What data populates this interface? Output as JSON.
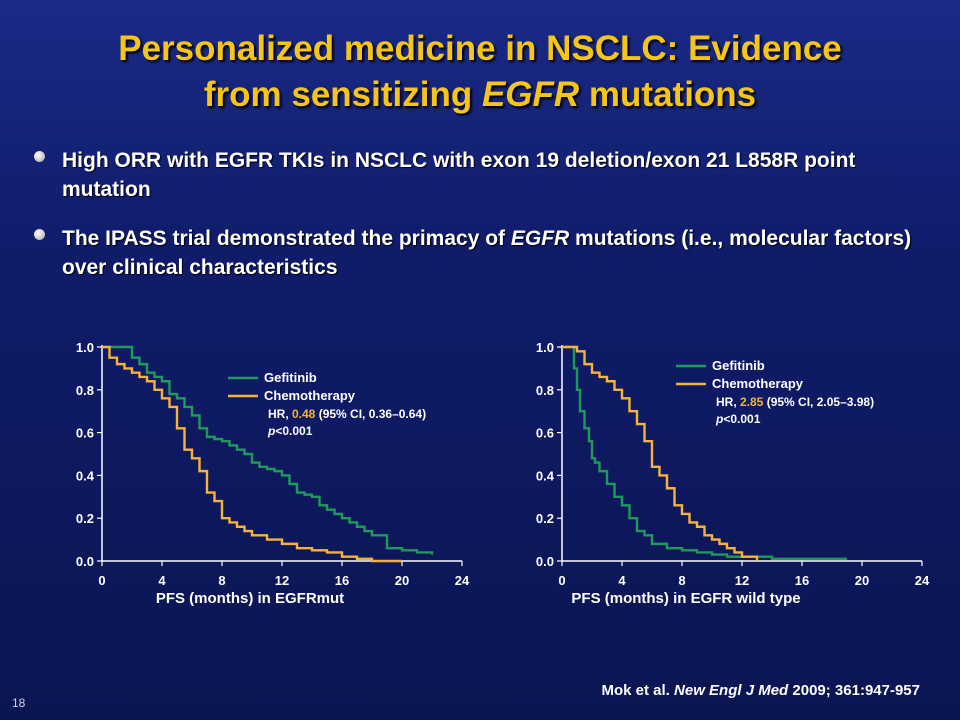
{
  "title": {
    "line1": "Personalized medicine in NSCLC: Evidence",
    "line2_pre": "from sensitizing ",
    "line2_em": "EGFR",
    "line2_post": " mutations"
  },
  "bullets": [
    {
      "text_pre": "High ORR with EGFR TKIs in NSCLC with exon 19 deletion/exon 21 L858R point mutation",
      "text_em": "",
      "text_post": ""
    },
    {
      "text_pre": "The IPASS trial demonstrated the primacy of ",
      "text_em": "EGFR",
      "text_post": " mutations (i.e., molecular factors) over clinical characteristics"
    }
  ],
  "colors": {
    "gefitinib": "#1f9a5c",
    "chemotherapy": "#f5b23d",
    "title": "#f5c518"
  },
  "chart_data": [
    {
      "type": "line",
      "xlabel": "PFS (months) in EGFRmut",
      "ylabel": "",
      "xlim": [
        0,
        24
      ],
      "ylim": [
        0,
        1
      ],
      "x_ticks": [
        "0",
        "4",
        "8",
        "12",
        "16",
        "20",
        "24"
      ],
      "y_ticks": [
        "0.0",
        "0.2",
        "0.4",
        "0.6",
        "0.8",
        "1.0"
      ],
      "legend": {
        "items": [
          "Gefitinib",
          "Chemotherapy"
        ],
        "position": "top-right"
      },
      "hr": {
        "prefix": "HR, ",
        "value": "0.48",
        "suffix": " (95% CI, 0.36–0.64)"
      },
      "p": {
        "p": "p",
        "rest": "<0.001"
      },
      "series": [
        {
          "name": "Gefitinib",
          "x": [
            0,
            1.5,
            2,
            2.5,
            3,
            3.5,
            4,
            4.5,
            5,
            5.5,
            6,
            6.5,
            7,
            7.5,
            8,
            8.5,
            9,
            9.5,
            10,
            10.5,
            11,
            11.5,
            12,
            12.5,
            13,
            13.5,
            14,
            14.5,
            15,
            15.5,
            16,
            16.5,
            17,
            17.5,
            18,
            19,
            20,
            21,
            22
          ],
          "y": [
            1.0,
            1.0,
            0.95,
            0.92,
            0.88,
            0.86,
            0.84,
            0.78,
            0.76,
            0.72,
            0.68,
            0.62,
            0.58,
            0.57,
            0.56,
            0.54,
            0.52,
            0.5,
            0.46,
            0.44,
            0.43,
            0.42,
            0.4,
            0.36,
            0.32,
            0.31,
            0.3,
            0.26,
            0.24,
            0.22,
            0.2,
            0.18,
            0.16,
            0.14,
            0.12,
            0.06,
            0.05,
            0.04,
            0.03
          ]
        },
        {
          "name": "Chemotherapy",
          "x": [
            0,
            0.5,
            1,
            1.5,
            2,
            2.5,
            3,
            3.5,
            4,
            4.5,
            5,
            5.5,
            6,
            6.5,
            7,
            7.5,
            8,
            8.5,
            9,
            9.5,
            10,
            11,
            12,
            13,
            14,
            15,
            16,
            17,
            18,
            20
          ],
          "y": [
            1.0,
            0.95,
            0.92,
            0.9,
            0.88,
            0.86,
            0.84,
            0.8,
            0.76,
            0.72,
            0.62,
            0.52,
            0.48,
            0.42,
            0.32,
            0.28,
            0.2,
            0.18,
            0.16,
            0.14,
            0.12,
            0.1,
            0.08,
            0.06,
            0.05,
            0.04,
            0.02,
            0.01,
            0.0,
            0.0
          ]
        }
      ]
    },
    {
      "type": "line",
      "xlabel": "PFS (months) in EGFR wild type",
      "ylabel": "",
      "xlim": [
        0,
        24
      ],
      "ylim": [
        0,
        1
      ],
      "x_ticks": [
        "0",
        "4",
        "8",
        "12",
        "16",
        "20",
        "24"
      ],
      "y_ticks": [
        "0.0",
        "0.2",
        "0.4",
        "0.6",
        "0.8",
        "1.0"
      ],
      "legend": {
        "items": [
          "Gefitinib",
          "Chemotherapy"
        ],
        "position": "top-right"
      },
      "hr": {
        "prefix": "HR, ",
        "value": "2.85",
        "suffix": " (95% CI, 2.05–3.98)"
      },
      "p": {
        "p": "p",
        "rest": "<0.001"
      },
      "series": [
        {
          "name": "Gefitinib",
          "x": [
            0,
            0.8,
            1,
            1.2,
            1.5,
            1.8,
            2,
            2.2,
            2.5,
            3,
            3.5,
            4,
            4.5,
            5,
            5.5,
            6,
            7,
            8,
            9,
            10,
            11,
            12,
            13,
            14,
            16,
            18,
            19
          ],
          "y": [
            1.0,
            0.9,
            0.8,
            0.7,
            0.62,
            0.56,
            0.48,
            0.46,
            0.42,
            0.36,
            0.3,
            0.26,
            0.2,
            0.14,
            0.12,
            0.08,
            0.06,
            0.05,
            0.04,
            0.03,
            0.02,
            0.02,
            0.02,
            0.01,
            0.01,
            0.01,
            0.01
          ]
        },
        {
          "name": "Chemotherapy",
          "x": [
            0,
            1,
            1.5,
            2,
            2.5,
            3,
            3.5,
            4,
            4.5,
            5,
            5.5,
            6,
            6.5,
            7,
            7.5,
            8,
            8.5,
            9,
            9.5,
            10,
            10.5,
            11,
            11.5,
            12,
            13
          ],
          "y": [
            1.0,
            0.98,
            0.92,
            0.88,
            0.86,
            0.84,
            0.8,
            0.76,
            0.7,
            0.64,
            0.56,
            0.44,
            0.4,
            0.34,
            0.26,
            0.22,
            0.18,
            0.16,
            0.12,
            0.1,
            0.08,
            0.06,
            0.04,
            0.02,
            0.0
          ]
        }
      ]
    }
  ],
  "citation": {
    "pre": "Mok et al. ",
    "journal": "New Engl J Med",
    "post": " 2009; 361:947-957"
  },
  "slide_number": "18"
}
